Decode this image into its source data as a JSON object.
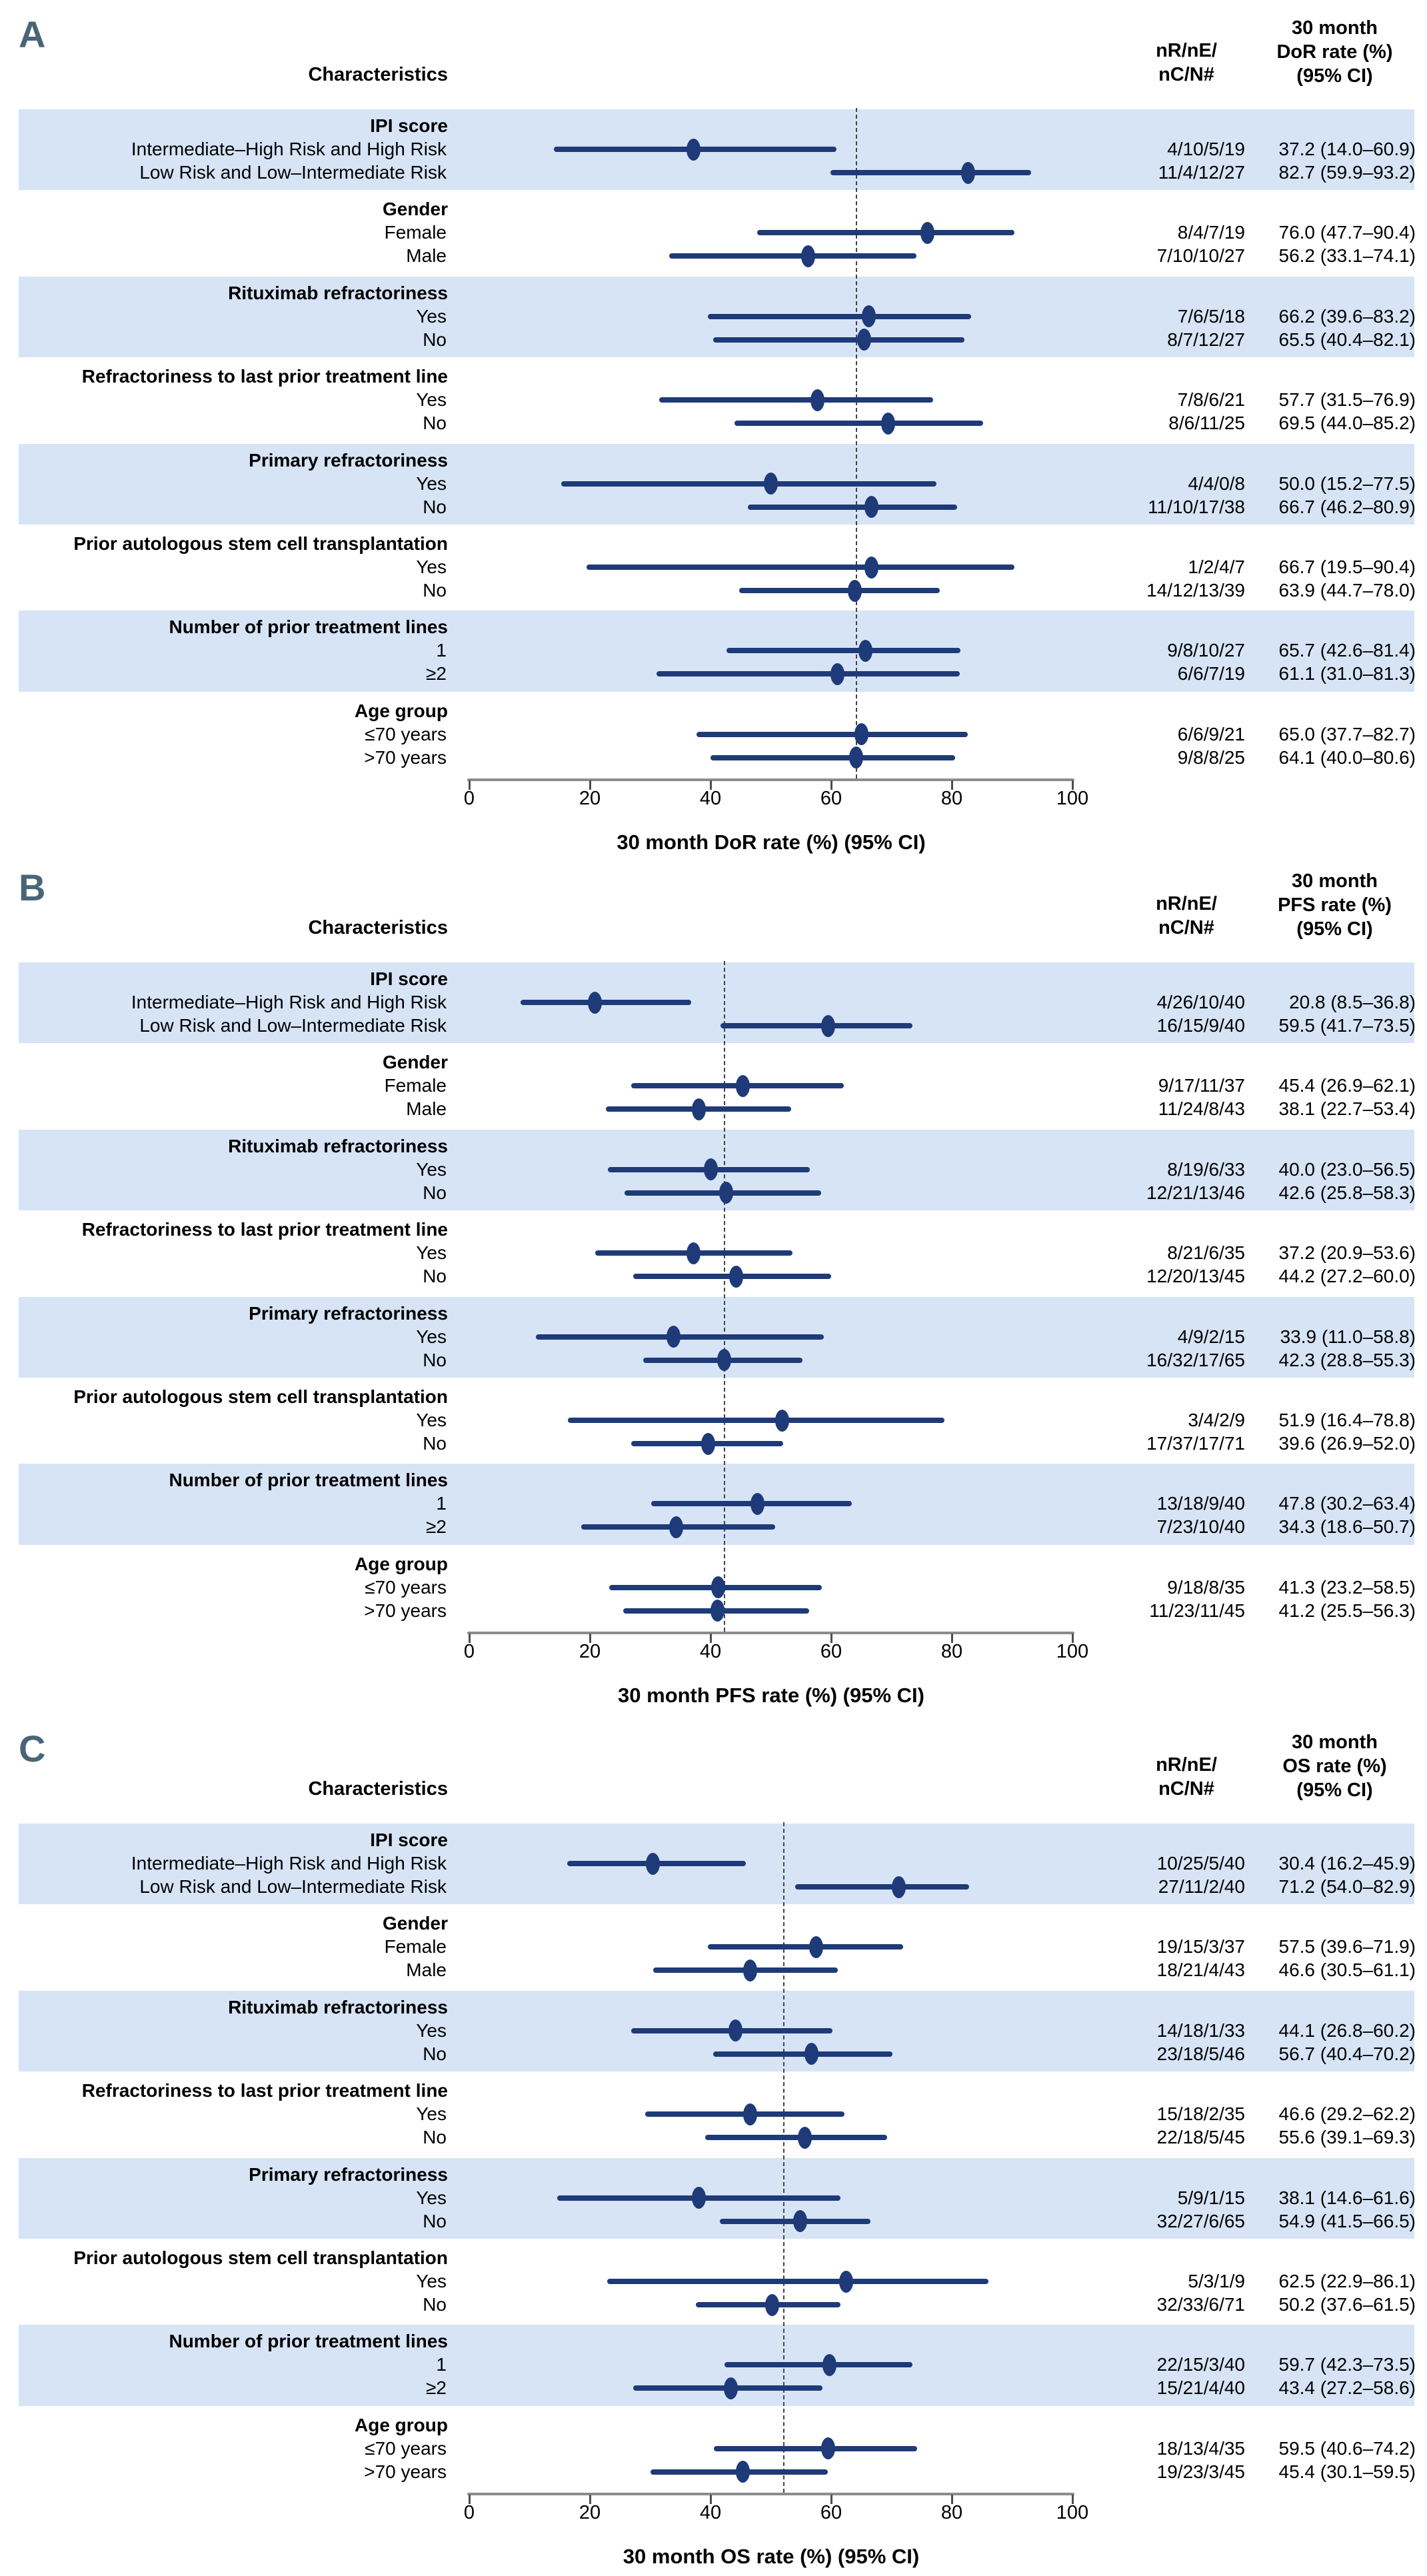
{
  "figure": {
    "columns": {
      "characteristics": "Characteristics",
      "counts_lines": [
        "nR/nE/",
        "nC/N#"
      ]
    },
    "colors": {
      "navy": "#1e3a78",
      "band_blue": "#d6e4f5",
      "panel_letter": "#4a6577",
      "axis_gray": "#8c8c8c",
      "tick_gray": "#4d4d4d",
      "dash_gray": "#444444"
    }
  },
  "chart_data": [
    {
      "type": "forest",
      "letter": "A",
      "outcome_header": [
        "30 month",
        "DoR rate (%)",
        "(95% CI)"
      ],
      "xlabel": "30 month DoR rate (%) (95% CI)",
      "xlim": [
        0,
        100
      ],
      "ticks": [
        0,
        20,
        40,
        60,
        80,
        100
      ],
      "reference_line": 64.2,
      "groups": [
        {
          "title": "IPI score",
          "rows": [
            {
              "label": "Intermediate–High Risk and High Risk",
              "counts": "4/10/5/19",
              "estimate": 37.2,
              "ci_low": 14.0,
              "ci_high": 60.9,
              "text": "37.2 (14.0–60.9)"
            },
            {
              "label": "Low Risk and Low–Intermediate Risk",
              "counts": "11/4/12/27",
              "estimate": 82.7,
              "ci_low": 59.9,
              "ci_high": 93.2,
              "text": "82.7 (59.9–93.2)"
            }
          ]
        },
        {
          "title": "Gender",
          "rows": [
            {
              "label": "Female",
              "counts": "8/4/7/19",
              "estimate": 76.0,
              "ci_low": 47.7,
              "ci_high": 90.4,
              "text": "76.0 (47.7–90.4)"
            },
            {
              "label": "Male",
              "counts": "7/10/10/27",
              "estimate": 56.2,
              "ci_low": 33.1,
              "ci_high": 74.1,
              "text": "56.2 (33.1–74.1)"
            }
          ]
        },
        {
          "title": "Rituximab refractoriness",
          "rows": [
            {
              "label": "Yes",
              "counts": "7/6/5/18",
              "estimate": 66.2,
              "ci_low": 39.6,
              "ci_high": 83.2,
              "text": "66.2 (39.6–83.2)"
            },
            {
              "label": "No",
              "counts": "8/7/12/27",
              "estimate": 65.5,
              "ci_low": 40.4,
              "ci_high": 82.1,
              "text": "65.5 (40.4–82.1)"
            }
          ]
        },
        {
          "title": "Refractoriness to last prior treatment line",
          "rows": [
            {
              "label": "Yes",
              "counts": "7/8/6/21",
              "estimate": 57.7,
              "ci_low": 31.5,
              "ci_high": 76.9,
              "text": "57.7 (31.5–76.9)"
            },
            {
              "label": "No",
              "counts": "8/6/11/25",
              "estimate": 69.5,
              "ci_low": 44.0,
              "ci_high": 85.2,
              "text": "69.5 (44.0–85.2)"
            }
          ]
        },
        {
          "title": "Primary refractoriness",
          "rows": [
            {
              "label": "Yes",
              "counts": "4/4/0/8",
              "estimate": 50.0,
              "ci_low": 15.2,
              "ci_high": 77.5,
              "text": "50.0 (15.2–77.5)"
            },
            {
              "label": "No",
              "counts": "11/10/17/38",
              "estimate": 66.7,
              "ci_low": 46.2,
              "ci_high": 80.9,
              "text": "66.7 (46.2–80.9)"
            }
          ]
        },
        {
          "title": "Prior autologous stem cell transplantation",
          "rows": [
            {
              "label": "Yes",
              "counts": "1/2/4/7",
              "estimate": 66.7,
              "ci_low": 19.5,
              "ci_high": 90.4,
              "text": "66.7 (19.5–90.4)"
            },
            {
              "label": "No",
              "counts": "14/12/13/39",
              "estimate": 63.9,
              "ci_low": 44.7,
              "ci_high": 78.0,
              "text": "63.9 (44.7–78.0)"
            }
          ]
        },
        {
          "title": "Number of prior treatment lines",
          "rows": [
            {
              "label": "1",
              "counts": "9/8/10/27",
              "estimate": 65.7,
              "ci_low": 42.6,
              "ci_high": 81.4,
              "text": "65.7 (42.6–81.4)"
            },
            {
              "label": "≥2",
              "counts": "6/6/7/19",
              "estimate": 61.1,
              "ci_low": 31.0,
              "ci_high": 81.3,
              "text": "61.1 (31.0–81.3)"
            }
          ]
        },
        {
          "title": "Age group",
          "rows": [
            {
              "label": "≤70 years",
              "counts": "6/6/9/21",
              "estimate": 65.0,
              "ci_low": 37.7,
              "ci_high": 82.7,
              "text": "65.0 (37.7–82.7)"
            },
            {
              "label": ">70 years",
              "counts": "9/8/8/25",
              "estimate": 64.1,
              "ci_low": 40.0,
              "ci_high": 80.6,
              "text": "64.1 (40.0–80.6)"
            }
          ]
        }
      ]
    },
    {
      "type": "forest",
      "letter": "B",
      "outcome_header": [
        "30 month",
        "PFS rate (%)",
        "(95% CI)"
      ],
      "xlabel": "30 month PFS rate (%) (95% CI)",
      "xlim": [
        0,
        100
      ],
      "ticks": [
        0,
        20,
        40,
        60,
        80,
        100
      ],
      "reference_line": 42.3,
      "groups": [
        {
          "title": "IPI score",
          "rows": [
            {
              "label": "Intermediate–High Risk and High Risk",
              "counts": "4/26/10/40",
              "estimate": 20.8,
              "ci_low": 8.5,
              "ci_high": 36.8,
              "text": "20.8 (8.5–36.8)"
            },
            {
              "label": "Low Risk and Low–Intermediate Risk",
              "counts": "16/15/9/40",
              "estimate": 59.5,
              "ci_low": 41.7,
              "ci_high": 73.5,
              "text": "59.5 (41.7–73.5)"
            }
          ]
        },
        {
          "title": "Gender",
          "rows": [
            {
              "label": "Female",
              "counts": "9/17/11/37",
              "estimate": 45.4,
              "ci_low": 26.9,
              "ci_high": 62.1,
              "text": "45.4 (26.9–62.1)"
            },
            {
              "label": "Male",
              "counts": "11/24/8/43",
              "estimate": 38.1,
              "ci_low": 22.7,
              "ci_high": 53.4,
              "text": "38.1 (22.7–53.4)"
            }
          ]
        },
        {
          "title": "Rituximab refractoriness",
          "rows": [
            {
              "label": "Yes",
              "counts": "8/19/6/33",
              "estimate": 40.0,
              "ci_low": 23.0,
              "ci_high": 56.5,
              "text": "40.0 (23.0–56.5)"
            },
            {
              "label": "No",
              "counts": "12/21/13/46",
              "estimate": 42.6,
              "ci_low": 25.8,
              "ci_high": 58.3,
              "text": "42.6 (25.8–58.3)"
            }
          ]
        },
        {
          "title": "Refractoriness to last prior treatment line",
          "rows": [
            {
              "label": "Yes",
              "counts": "8/21/6/35",
              "estimate": 37.2,
              "ci_low": 20.9,
              "ci_high": 53.6,
              "text": "37.2 (20.9–53.6)"
            },
            {
              "label": "No",
              "counts": "12/20/13/45",
              "estimate": 44.2,
              "ci_low": 27.2,
              "ci_high": 60.0,
              "text": "44.2 (27.2–60.0)"
            }
          ]
        },
        {
          "title": "Primary refractoriness",
          "rows": [
            {
              "label": "Yes",
              "counts": "4/9/2/15",
              "estimate": 33.9,
              "ci_low": 11.0,
              "ci_high": 58.8,
              "text": "33.9 (11.0–58.8)"
            },
            {
              "label": "No",
              "counts": "16/32/17/65",
              "estimate": 42.3,
              "ci_low": 28.8,
              "ci_high": 55.3,
              "text": "42.3 (28.8–55.3)"
            }
          ]
        },
        {
          "title": "Prior autologous stem cell transplantation",
          "rows": [
            {
              "label": "Yes",
              "counts": "3/4/2/9",
              "estimate": 51.9,
              "ci_low": 16.4,
              "ci_high": 78.8,
              "text": "51.9 (16.4–78.8)"
            },
            {
              "label": "No",
              "counts": "17/37/17/71",
              "estimate": 39.6,
              "ci_low": 26.9,
              "ci_high": 52.0,
              "text": "39.6 (26.9–52.0)"
            }
          ]
        },
        {
          "title": "Number of prior treatment lines",
          "rows": [
            {
              "label": "1",
              "counts": "13/18/9/40",
              "estimate": 47.8,
              "ci_low": 30.2,
              "ci_high": 63.4,
              "text": "47.8 (30.2–63.4)"
            },
            {
              "label": "≥2",
              "counts": "7/23/10/40",
              "estimate": 34.3,
              "ci_low": 18.6,
              "ci_high": 50.7,
              "text": "34.3 (18.6–50.7)"
            }
          ]
        },
        {
          "title": "Age group",
          "rows": [
            {
              "label": "≤70 years",
              "counts": "9/18/8/35",
              "estimate": 41.3,
              "ci_low": 23.2,
              "ci_high": 58.5,
              "text": "41.3 (23.2–58.5)"
            },
            {
              "label": ">70 years",
              "counts": "11/23/11/45",
              "estimate": 41.2,
              "ci_low": 25.5,
              "ci_high": 56.3,
              "text": "41.2 (25.5–56.3)"
            }
          ]
        }
      ]
    },
    {
      "type": "forest",
      "letter": "C",
      "outcome_header": [
        "30 month",
        "OS rate (%)",
        "(95% CI)"
      ],
      "xlabel": "30 month OS rate (%) (95% CI)",
      "xlim": [
        0,
        100
      ],
      "ticks": [
        0,
        20,
        40,
        60,
        80,
        100
      ],
      "reference_line": 52.2,
      "groups": [
        {
          "title": "IPI score",
          "rows": [
            {
              "label": "Intermediate–High Risk and High Risk",
              "counts": "10/25/5/40",
              "estimate": 30.4,
              "ci_low": 16.2,
              "ci_high": 45.9,
              "text": "30.4 (16.2–45.9)"
            },
            {
              "label": "Low Risk and Low–Intermediate Risk",
              "counts": "27/11/2/40",
              "estimate": 71.2,
              "ci_low": 54.0,
              "ci_high": 82.9,
              "text": "71.2 (54.0–82.9)"
            }
          ]
        },
        {
          "title": "Gender",
          "rows": [
            {
              "label": "Female",
              "counts": "19/15/3/37",
              "estimate": 57.5,
              "ci_low": 39.6,
              "ci_high": 71.9,
              "text": "57.5 (39.6–71.9)"
            },
            {
              "label": "Male",
              "counts": "18/21/4/43",
              "estimate": 46.6,
              "ci_low": 30.5,
              "ci_high": 61.1,
              "text": "46.6 (30.5–61.1)"
            }
          ]
        },
        {
          "title": "Rituximab refractoriness",
          "rows": [
            {
              "label": "Yes",
              "counts": "14/18/1/33",
              "estimate": 44.1,
              "ci_low": 26.8,
              "ci_high": 60.2,
              "text": "44.1 (26.8–60.2)"
            },
            {
              "label": "No",
              "counts": "23/18/5/46",
              "estimate": 56.7,
              "ci_low": 40.4,
              "ci_high": 70.2,
              "text": "56.7 (40.4–70.2)"
            }
          ]
        },
        {
          "title": "Refractoriness to last prior treatment line",
          "rows": [
            {
              "label": "Yes",
              "counts": "15/18/2/35",
              "estimate": 46.6,
              "ci_low": 29.2,
              "ci_high": 62.2,
              "text": "46.6 (29.2–62.2)"
            },
            {
              "label": "No",
              "counts": "22/18/5/45",
              "estimate": 55.6,
              "ci_low": 39.1,
              "ci_high": 69.3,
              "text": "55.6 (39.1–69.3)"
            }
          ]
        },
        {
          "title": "Primary refractoriness",
          "rows": [
            {
              "label": "Yes",
              "counts": "5/9/1/15",
              "estimate": 38.1,
              "ci_low": 14.6,
              "ci_high": 61.6,
              "text": "38.1 (14.6–61.6)"
            },
            {
              "label": "No",
              "counts": "32/27/6/65",
              "estimate": 54.9,
              "ci_low": 41.5,
              "ci_high": 66.5,
              "text": "54.9 (41.5–66.5)"
            }
          ]
        },
        {
          "title": "Prior autologous stem cell transplantation",
          "rows": [
            {
              "label": "Yes",
              "counts": "5/3/1/9",
              "estimate": 62.5,
              "ci_low": 22.9,
              "ci_high": 86.1,
              "text": "62.5 (22.9–86.1)"
            },
            {
              "label": "No",
              "counts": "32/33/6/71",
              "estimate": 50.2,
              "ci_low": 37.6,
              "ci_high": 61.5,
              "text": "50.2 (37.6–61.5)"
            }
          ]
        },
        {
          "title": "Number of prior treatment lines",
          "rows": [
            {
              "label": "1",
              "counts": "22/15/3/40",
              "estimate": 59.7,
              "ci_low": 42.3,
              "ci_high": 73.5,
              "text": "59.7 (42.3–73.5)"
            },
            {
              "label": "≥2",
              "counts": "15/21/4/40",
              "estimate": 43.4,
              "ci_low": 27.2,
              "ci_high": 58.6,
              "text": "43.4 (27.2–58.6)"
            }
          ]
        },
        {
          "title": "Age group",
          "rows": [
            {
              "label": "≤70 years",
              "counts": "18/13/4/35",
              "estimate": 59.5,
              "ci_low": 40.6,
              "ci_high": 74.2,
              "text": "59.5 (40.6–74.2)"
            },
            {
              "label": ">70 years",
              "counts": "19/23/3/45",
              "estimate": 45.4,
              "ci_low": 30.1,
              "ci_high": 59.5,
              "text": "45.4 (30.1–59.5)"
            }
          ]
        }
      ]
    }
  ]
}
